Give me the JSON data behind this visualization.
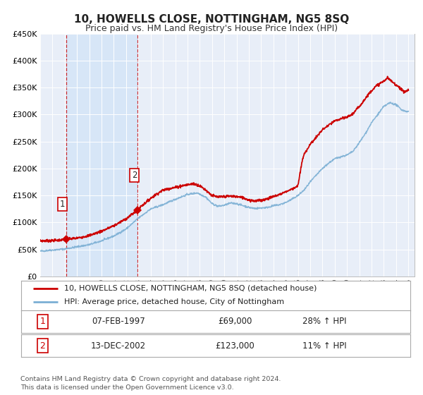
{
  "title": "10, HOWELLS CLOSE, NOTTINGHAM, NG5 8SQ",
  "subtitle": "Price paid vs. HM Land Registry's House Price Index (HPI)",
  "xlim": [
    1995.0,
    2025.5
  ],
  "ylim": [
    0,
    450000
  ],
  "yticks": [
    0,
    50000,
    100000,
    150000,
    200000,
    250000,
    300000,
    350000,
    400000,
    450000
  ],
  "ytick_labels": [
    "£0",
    "£50K",
    "£100K",
    "£150K",
    "£200K",
    "£250K",
    "£300K",
    "£350K",
    "£400K",
    "£450K"
  ],
  "xticks": [
    1995,
    1996,
    1997,
    1998,
    1999,
    2000,
    2001,
    2002,
    2003,
    2004,
    2005,
    2006,
    2007,
    2008,
    2009,
    2010,
    2011,
    2012,
    2013,
    2014,
    2015,
    2016,
    2017,
    2018,
    2019,
    2020,
    2021,
    2022,
    2023,
    2024,
    2025
  ],
  "sold_color": "#cc0000",
  "hpi_color": "#7bafd4",
  "sold_label": "10, HOWELLS CLOSE, NOTTINGHAM, NG5 8SQ (detached house)",
  "hpi_label": "HPI: Average price, detached house, City of Nottingham",
  "marker1_date": 1997.1,
  "marker1_value": 69000,
  "marker2_date": 2002.95,
  "marker2_value": 123000,
  "vline1_x": 1997.1,
  "vline2_x": 2002.95,
  "shade_start": 1997.1,
  "shade_end": 2002.95,
  "table_rows": [
    [
      "1",
      "07-FEB-1997",
      "£69,000",
      "28% ↑ HPI"
    ],
    [
      "2",
      "13-DEC-2002",
      "£123,000",
      "11% ↑ HPI"
    ]
  ],
  "footnote1": "Contains HM Land Registry data © Crown copyright and database right 2024.",
  "footnote2": "This data is licensed under the Open Government Licence v3.0.",
  "background_color": "#ffffff",
  "plot_bg_color": "#e8eef8"
}
